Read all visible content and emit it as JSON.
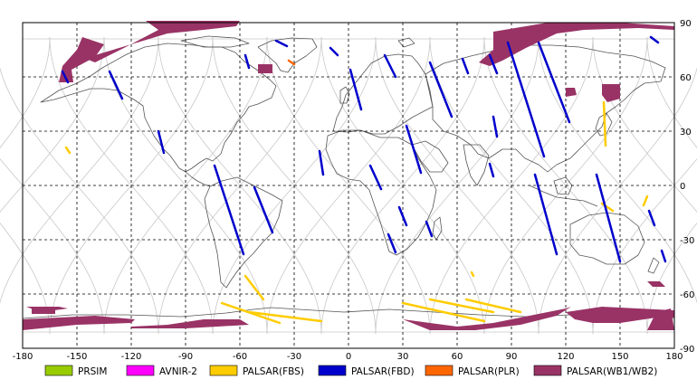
{
  "map": {
    "lon_ticks": [
      -180,
      -150,
      -120,
      -90,
      -60,
      -30,
      0,
      30,
      60,
      90,
      120,
      150,
      180
    ],
    "lat_ticks": [
      90,
      60,
      30,
      0,
      -30,
      -60,
      -90
    ],
    "lon_range": [
      -180,
      180
    ],
    "lat_range": [
      -90,
      90
    ],
    "grid": "dashed",
    "background_orbit_tracks": true
  },
  "legend": {
    "placement": "bottom",
    "items": [
      {
        "label": "PRSIM",
        "color": "#99cc00"
      },
      {
        "label": "AVNIR-2",
        "color": "#ff00ff"
      },
      {
        "label": "PALSAR(FBS)",
        "color": "#ffcc00"
      },
      {
        "label": "PALSAR(FBD)",
        "color": "#0000cc"
      },
      {
        "label": "PALSAR(PLR)",
        "color": "#ff6600"
      },
      {
        "label": "PALSAR(WB1/WB2)",
        "color": "#993366"
      }
    ]
  },
  "swaths": {
    "fbd": [
      [
        [
          -158,
          63
        ],
        [
          -155,
          57
        ]
      ],
      [
        [
          -132,
          63
        ],
        [
          -125,
          48
        ]
      ],
      [
        [
          -105,
          30
        ],
        [
          -102,
          18
        ]
      ],
      [
        [
          -74,
          11
        ],
        [
          -58,
          -38
        ]
      ],
      [
        [
          -52,
          -1
        ],
        [
          -42,
          -26
        ]
      ],
      [
        [
          -57,
          72
        ],
        [
          -55,
          65
        ]
      ],
      [
        [
          -16,
          19
        ],
        [
          -14,
          6
        ]
      ],
      [
        [
          1,
          64
        ],
        [
          7,
          42
        ]
      ],
      [
        [
          20,
          72
        ],
        [
          26,
          60
        ]
      ],
      [
        [
          45,
          68
        ],
        [
          57,
          38
        ]
      ],
      [
        [
          32,
          33
        ],
        [
          40,
          7
        ]
      ],
      [
        [
          12,
          11
        ],
        [
          18,
          -2
        ]
      ],
      [
        [
          22,
          -27
        ],
        [
          26,
          -37
        ]
      ],
      [
        [
          43,
          -20
        ],
        [
          46,
          -28
        ]
      ],
      [
        [
          63,
          70
        ],
        [
          66,
          62
        ]
      ],
      [
        [
          78,
          72
        ],
        [
          82,
          62
        ]
      ],
      [
        [
          88,
          79
        ],
        [
          108,
          16
        ]
      ],
      [
        [
          105,
          79
        ],
        [
          122,
          35
        ]
      ],
      [
        [
          103,
          6
        ],
        [
          115,
          -38
        ]
      ],
      [
        [
          137,
          6
        ],
        [
          150,
          -42
        ]
      ],
      [
        [
          80,
          38
        ],
        [
          82,
          27
        ]
      ],
      [
        [
          78,
          12
        ],
        [
          80,
          5
        ]
      ],
      [
        [
          166,
          -14
        ],
        [
          169,
          -22
        ]
      ],
      [
        [
          173,
          -36
        ],
        [
          175,
          -42
        ]
      ],
      [
        [
          167,
          82
        ],
        [
          171,
          79
        ]
      ],
      [
        [
          -10,
          76
        ],
        [
          -6,
          72
        ]
      ],
      [
        [
          28,
          -12
        ],
        [
          32,
          -22
        ]
      ],
      [
        [
          -40,
          80
        ],
        [
          -34,
          77
        ]
      ]
    ],
    "fbs": [
      [
        [
          -57,
          -50
        ],
        [
          -47,
          -63
        ]
      ],
      [
        [
          -70,
          -65
        ],
        [
          -38,
          -76
        ]
      ],
      [
        [
          -55,
          -70
        ],
        [
          -15,
          -75
        ]
      ],
      [
        [
          30,
          -65
        ],
        [
          75,
          -75
        ]
      ],
      [
        [
          45,
          -63
        ],
        [
          80,
          -70
        ]
      ],
      [
        [
          65,
          -63
        ],
        [
          95,
          -70
        ]
      ],
      [
        [
          140,
          -10
        ],
        [
          146,
          -14
        ]
      ],
      [
        [
          142,
          22
        ],
        [
          141,
          46
        ]
      ],
      [
        [
          165,
          -6
        ],
        [
          163,
          -11
        ]
      ],
      [
        [
          -156,
          21
        ],
        [
          -154,
          18
        ]
      ],
      [
        [
          68,
          -48
        ],
        [
          69,
          -50
        ]
      ]
    ],
    "plr": [
      [
        [
          -33,
          69
        ],
        [
          -30,
          67
        ]
      ]
    ],
    "wb": [
      [
        [
          -147,
          82
        ],
        [
          -135,
          78
        ],
        [
          -140,
          71
        ],
        [
          -153,
          64
        ],
        [
          -152,
          57
        ],
        [
          -160,
          57
        ],
        [
          -158,
          66
        ],
        [
          -150,
          75
        ]
      ],
      [
        [
          -112,
          91
        ],
        [
          -82,
          91
        ],
        [
          -60,
          91
        ],
        [
          -62,
          88
        ],
        [
          -80,
          86
        ],
        [
          -100,
          84
        ],
        [
          -120,
          78
        ],
        [
          -140,
          72
        ],
        [
          -145,
          70
        ],
        [
          -140,
          68
        ],
        [
          -124,
          76
        ],
        [
          -105,
          86
        ]
      ],
      [
        [
          -50,
          67
        ],
        [
          -42,
          67
        ],
        [
          -42,
          62
        ],
        [
          -50,
          62
        ]
      ],
      [
        [
          80,
          85
        ],
        [
          110,
          90
        ],
        [
          150,
          90
        ],
        [
          180,
          88
        ],
        [
          180,
          86
        ],
        [
          160,
          87
        ],
        [
          130,
          86
        ],
        [
          115,
          84
        ],
        [
          98,
          76
        ],
        [
          85,
          69
        ],
        [
          78,
          66
        ],
        [
          72,
          68
        ],
        [
          80,
          75
        ]
      ],
      [
        [
          120,
          54
        ],
        [
          125,
          54
        ],
        [
          126,
          50
        ],
        [
          120,
          49
        ]
      ],
      [
        [
          140,
          56
        ],
        [
          150,
          56
        ],
        [
          150,
          48
        ],
        [
          143,
          46
        ],
        [
          140,
          50
        ]
      ],
      [
        [
          165,
          -53
        ],
        [
          172,
          -53
        ],
        [
          175,
          -56
        ],
        [
          168,
          -56
        ]
      ],
      [
        [
          -175,
          -67
        ],
        [
          -162,
          -67
        ],
        [
          -162,
          -71
        ],
        [
          -175,
          -71
        ]
      ],
      [
        [
          -180,
          -74
        ],
        [
          -140,
          -72
        ],
        [
          -118,
          -74
        ],
        [
          -120,
          -76
        ],
        [
          -150,
          -77
        ],
        [
          -180,
          -80
        ]
      ],
      [
        [
          -120,
          -78
        ],
        [
          -100,
          -77
        ],
        [
          -80,
          -74
        ],
        [
          -60,
          -74
        ],
        [
          -55,
          -77
        ],
        [
          -90,
          -79
        ],
        [
          -120,
          -79
        ]
      ],
      [
        [
          -178,
          -67
        ],
        [
          -160,
          -67
        ],
        [
          -155,
          -68
        ],
        [
          -170,
          -70
        ]
      ],
      [
        [
          30,
          -74
        ],
        [
          60,
          -78
        ],
        [
          80,
          -76
        ],
        [
          100,
          -72
        ],
        [
          120,
          -68
        ],
        [
          123,
          -67
        ],
        [
          115,
          -72
        ],
        [
          95,
          -77
        ],
        [
          70,
          -80
        ],
        [
          45,
          -80
        ]
      ],
      [
        [
          120,
          -70
        ],
        [
          140,
          -67
        ],
        [
          160,
          -68
        ],
        [
          180,
          -69
        ],
        [
          180,
          -73
        ],
        [
          170,
          -73
        ],
        [
          150,
          -76
        ],
        [
          135,
          -76
        ],
        [
          125,
          -74
        ]
      ],
      [
        [
          170,
          -70
        ],
        [
          178,
          -68
        ],
        [
          180,
          -80
        ],
        [
          165,
          -80
        ]
      ]
    ]
  }
}
